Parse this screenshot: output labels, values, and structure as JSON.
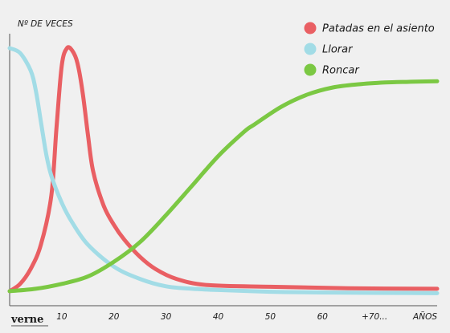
{
  "chart_data": {
    "type": "line",
    "ylabel": "Nº DE VECES",
    "xlabel": "AÑOS",
    "x_tick_labels": [
      "10",
      "20",
      "30",
      "40",
      "50",
      "60",
      "+70..."
    ],
    "x_tick_values": [
      10,
      20,
      30,
      40,
      50,
      60,
      70
    ],
    "xlim": [
      0,
      82
    ],
    "ylim": [
      0,
      100
    ],
    "y_tick_labels": [],
    "grid": false,
    "legend_position": "top-right",
    "series": [
      {
        "name": "Patadas en el asiento",
        "color": "#e95f63",
        "x": [
          0,
          2,
          4,
          6,
          8,
          9,
          10,
          11,
          12,
          13,
          14,
          15,
          16,
          18,
          20,
          22,
          25,
          28,
          32,
          38,
          50,
          65,
          82
        ],
        "y": [
          1,
          4,
          10,
          20,
          40,
          68,
          93,
          100,
          99,
          94,
          82,
          65,
          50,
          36,
          28,
          22,
          15,
          10,
          6,
          3.5,
          2.8,
          2.2,
          2
        ]
      },
      {
        "name": "Llorar",
        "color": "#a2dce6",
        "x": [
          0,
          2,
          4,
          5,
          6,
          7,
          8,
          10,
          12,
          15,
          20,
          25,
          30,
          35,
          40,
          50,
          60,
          82
        ],
        "y": [
          100,
          98,
          91,
          83,
          70,
          57,
          48,
          37,
          29,
          20,
          11,
          6,
          3,
          2,
          1.5,
          0.8,
          0.5,
          0.2
        ]
      },
      {
        "name": "Roncar",
        "color": "#7bc843",
        "x": [
          0,
          5,
          10,
          15,
          20,
          25,
          30,
          35,
          40,
          45,
          47,
          52,
          57,
          62,
          67,
          72,
          77,
          82
        ],
        "y": [
          1,
          2,
          4,
          7,
          13,
          21,
          32,
          44,
          56,
          66,
          69,
          76,
          81,
          84,
          85.3,
          86,
          86.3,
          86.5
        ]
      }
    ]
  },
  "branding": {
    "logo_text": "verne"
  }
}
